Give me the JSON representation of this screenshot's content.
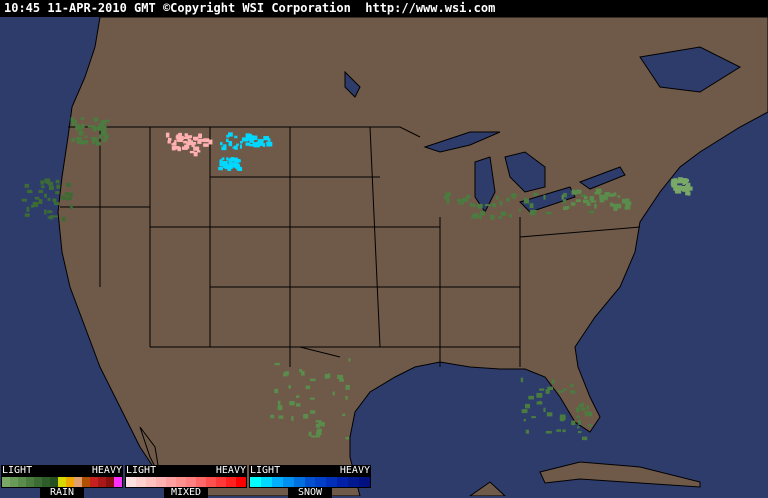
{
  "header": {
    "timestamp": "10:45 11-APR-2010 GMT",
    "copyright": "©Copyright WSI Corporation",
    "url": "http://www.wsi.com"
  },
  "colors": {
    "ocean": "#2e3c6c",
    "land": "#6f5a49",
    "borders": "#000000"
  },
  "legend": [
    {
      "name": "RAIN",
      "light": "LIGHT",
      "heavy": "HEAVY",
      "colors": [
        "#7aa866",
        "#6a9a58",
        "#5a8c4c",
        "#4a7c40",
        "#3c6c34",
        "#2e5c2a",
        "#24501f",
        "#d8d800",
        "#f0a800",
        "#e0a070",
        "#b05000",
        "#c82020",
        "#a81818",
        "#881010",
        "#ff30ff"
      ]
    },
    {
      "name": "MIXED",
      "light": "LIGHT",
      "heavy": "HEAVY",
      "colors": [
        "#ffe0e0",
        "#ffd0d0",
        "#ffc0c0",
        "#ffb0b0",
        "#ffa0a0",
        "#ff9090",
        "#ff8080",
        "#ff6868",
        "#ff5050",
        "#ff3838",
        "#ff2020",
        "#ff0000"
      ]
    },
    {
      "name": "SNOW",
      "light": "LIGHT",
      "heavy": "HEAVY",
      "colors": [
        "#00ffff",
        "#00d8ff",
        "#00b0ff",
        "#0090f0",
        "#0070e0",
        "#0050d0",
        "#0040c8",
        "#0030b8",
        "#0020a8",
        "#001890",
        "#001080"
      ]
    }
  ]
}
